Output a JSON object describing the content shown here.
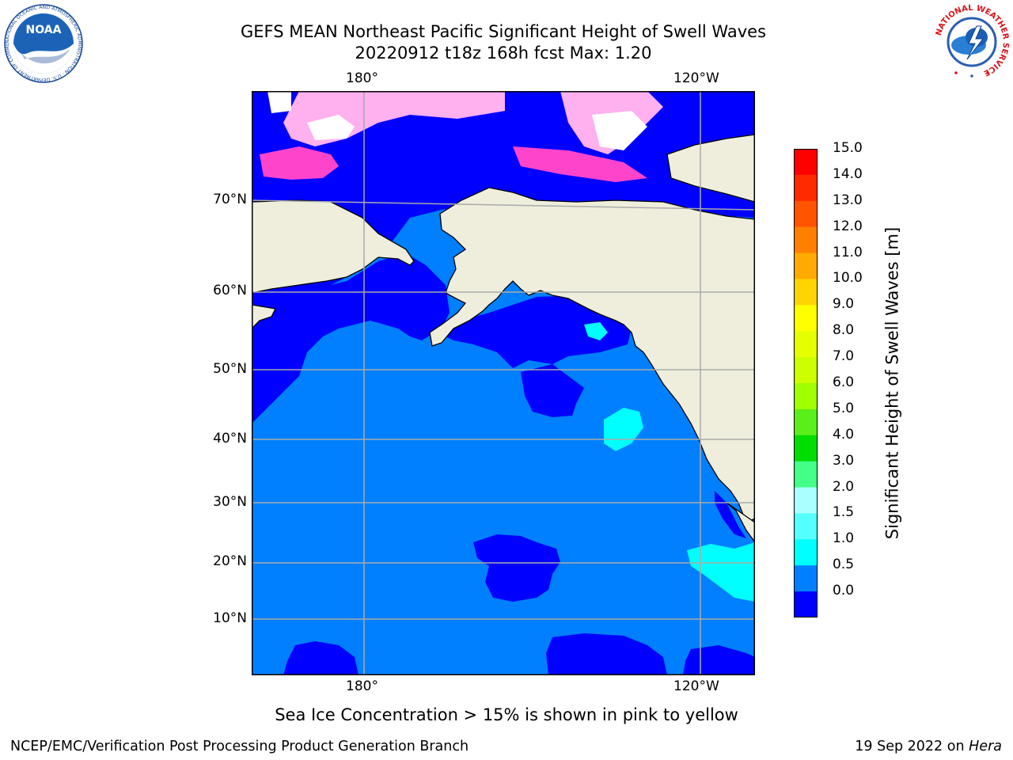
{
  "title": {
    "line1": "GEFS MEAN Northeast Pacific Significant Height of Swell Waves",
    "line2": "20220912 t18z 168h fcst   Max: 1.20"
  },
  "map": {
    "lon_labels": [
      "180°",
      "120°W"
    ],
    "lat_labels": [
      "70°N",
      "60°N",
      "50°N",
      "40°N",
      "30°N",
      "20°N",
      "10°N"
    ],
    "colors": {
      "ocean_low": "#0000ff",
      "ocean_mid": "#0080ff",
      "ocean_high": "#00ffff",
      "land": "#efeedc",
      "ice_pink": "#ff44cc",
      "ice_light": "#ffb0ee",
      "grid": "#aaaaaa"
    }
  },
  "colorbar": {
    "title": "Significant Height of Swell Waves [m]",
    "labels": [
      "15.0",
      "14.0",
      "13.0",
      "12.0",
      "11.0",
      "10.0",
      "9.0",
      "8.0",
      "7.0",
      "6.0",
      "5.0",
      "4.0",
      "3.0",
      "2.0",
      "1.5",
      "1.0",
      "0.5",
      "0.0"
    ],
    "colors": [
      "#ff0000",
      "#ff2a00",
      "#ff5500",
      "#ff8000",
      "#ffaa00",
      "#ffd400",
      "#ffff00",
      "#e6ff00",
      "#ccff00",
      "#a0ff00",
      "#5aee1a",
      "#00dd00",
      "#44ff88",
      "#aaffff",
      "#55ffff",
      "#00ffff",
      "#0080ff",
      "#0000ff"
    ]
  },
  "note": "Sea Ice Concentration > 15% is shown in pink to yellow",
  "footer": {
    "left": "NCEP/EMC/Verification Post Processing Product Generation Branch",
    "date": "19 Sep 2022 on",
    "host": "Hera"
  },
  "logos": {
    "noaa_text": "NOAA",
    "noaa_ring": "NATIONAL OCEANIC AND ATMOSPHERIC ADMINISTRATION · U.S. DEPARTMENT OF COMMERCE ·",
    "nws_ring": "NATIONAL WEATHER SERVICE"
  }
}
